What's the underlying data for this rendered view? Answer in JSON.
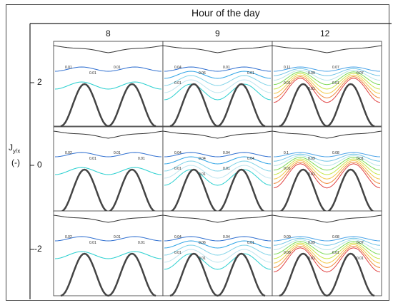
{
  "header": {
    "title": "Hour of the day"
  },
  "columns": [
    {
      "label": "8"
    },
    {
      "label": "9"
    },
    {
      "label": "12"
    }
  ],
  "rows": [
    {
      "label": "2"
    },
    {
      "label": "0"
    },
    {
      "label": "-2"
    }
  ],
  "y_axis": {
    "main": "J",
    "subscript": "y/x",
    "unit": "(-)"
  },
  "panels": [
    [
      {
        "labels": [
          "0.01",
          "0.01",
          "0.01"
        ],
        "colors": [
          "#2f6fd0",
          "#2bd0d0"
        ]
      },
      {
        "labels": [
          "0.04",
          "0.06",
          "0.01",
          "0.01",
          "0.01"
        ],
        "colors": [
          "#2f6fd0",
          "#33a6e6",
          "#7fd3e8",
          "#bfe6f0",
          "#2bd0d0"
        ]
      },
      {
        "labels": [
          "0.11",
          "0.09",
          "0.07",
          "0.07",
          "0.01",
          "0.01",
          "0.01"
        ],
        "colors": [
          "#4aa3e8",
          "#6fc3e6",
          "#b7e4e6",
          "#7ed957",
          "#c8e64a",
          "#f2c94c",
          "#f08a3c",
          "#e04040"
        ]
      }
    ],
    [
      {
        "labels": [
          "0.02",
          "0.01",
          "0.01",
          "0.01"
        ],
        "colors": [
          "#2f6fd0",
          "#2bd0d0"
        ]
      },
      {
        "labels": [
          "0.04",
          "0.04",
          "0.04",
          "0.04",
          "0.01",
          "0.01",
          "0.01"
        ],
        "colors": [
          "#2f6fd0",
          "#33a6e6",
          "#7fd3e8",
          "#bfe6f0",
          "#2bd0d0"
        ]
      },
      {
        "labels": [
          "0.1",
          "0.09",
          "0.08",
          "0.01",
          "0.01",
          "0.01"
        ],
        "colors": [
          "#4aa3e8",
          "#6fc3e6",
          "#b7e4e6",
          "#7ed957",
          "#c8e64a",
          "#f2c94c",
          "#f08a3c",
          "#e04040"
        ]
      }
    ],
    [
      {
        "labels": [
          "0.02",
          "0.01",
          "0.01",
          "0.01"
        ],
        "colors": [
          "#2f6fd0",
          "#2bd0d0"
        ]
      },
      {
        "labels": [
          "0.04",
          "0.06",
          "0.04",
          "0.01",
          "0.01",
          "0.01"
        ],
        "colors": [
          "#2f6fd0",
          "#33a6e6",
          "#7fd3e8",
          "#bfe6f0",
          "#2bd0d0"
        ]
      },
      {
        "labels": [
          "0.09",
          "0.09",
          "0.08",
          "0.07",
          "0.08",
          "0.01",
          "0.01",
          "0.01"
        ],
        "colors": [
          "#4aa3e8",
          "#6fc3e6",
          "#b7e4e6",
          "#7ed957",
          "#c8e64a",
          "#f2c94c",
          "#f08a3c",
          "#e04040"
        ]
      }
    ]
  ]
}
